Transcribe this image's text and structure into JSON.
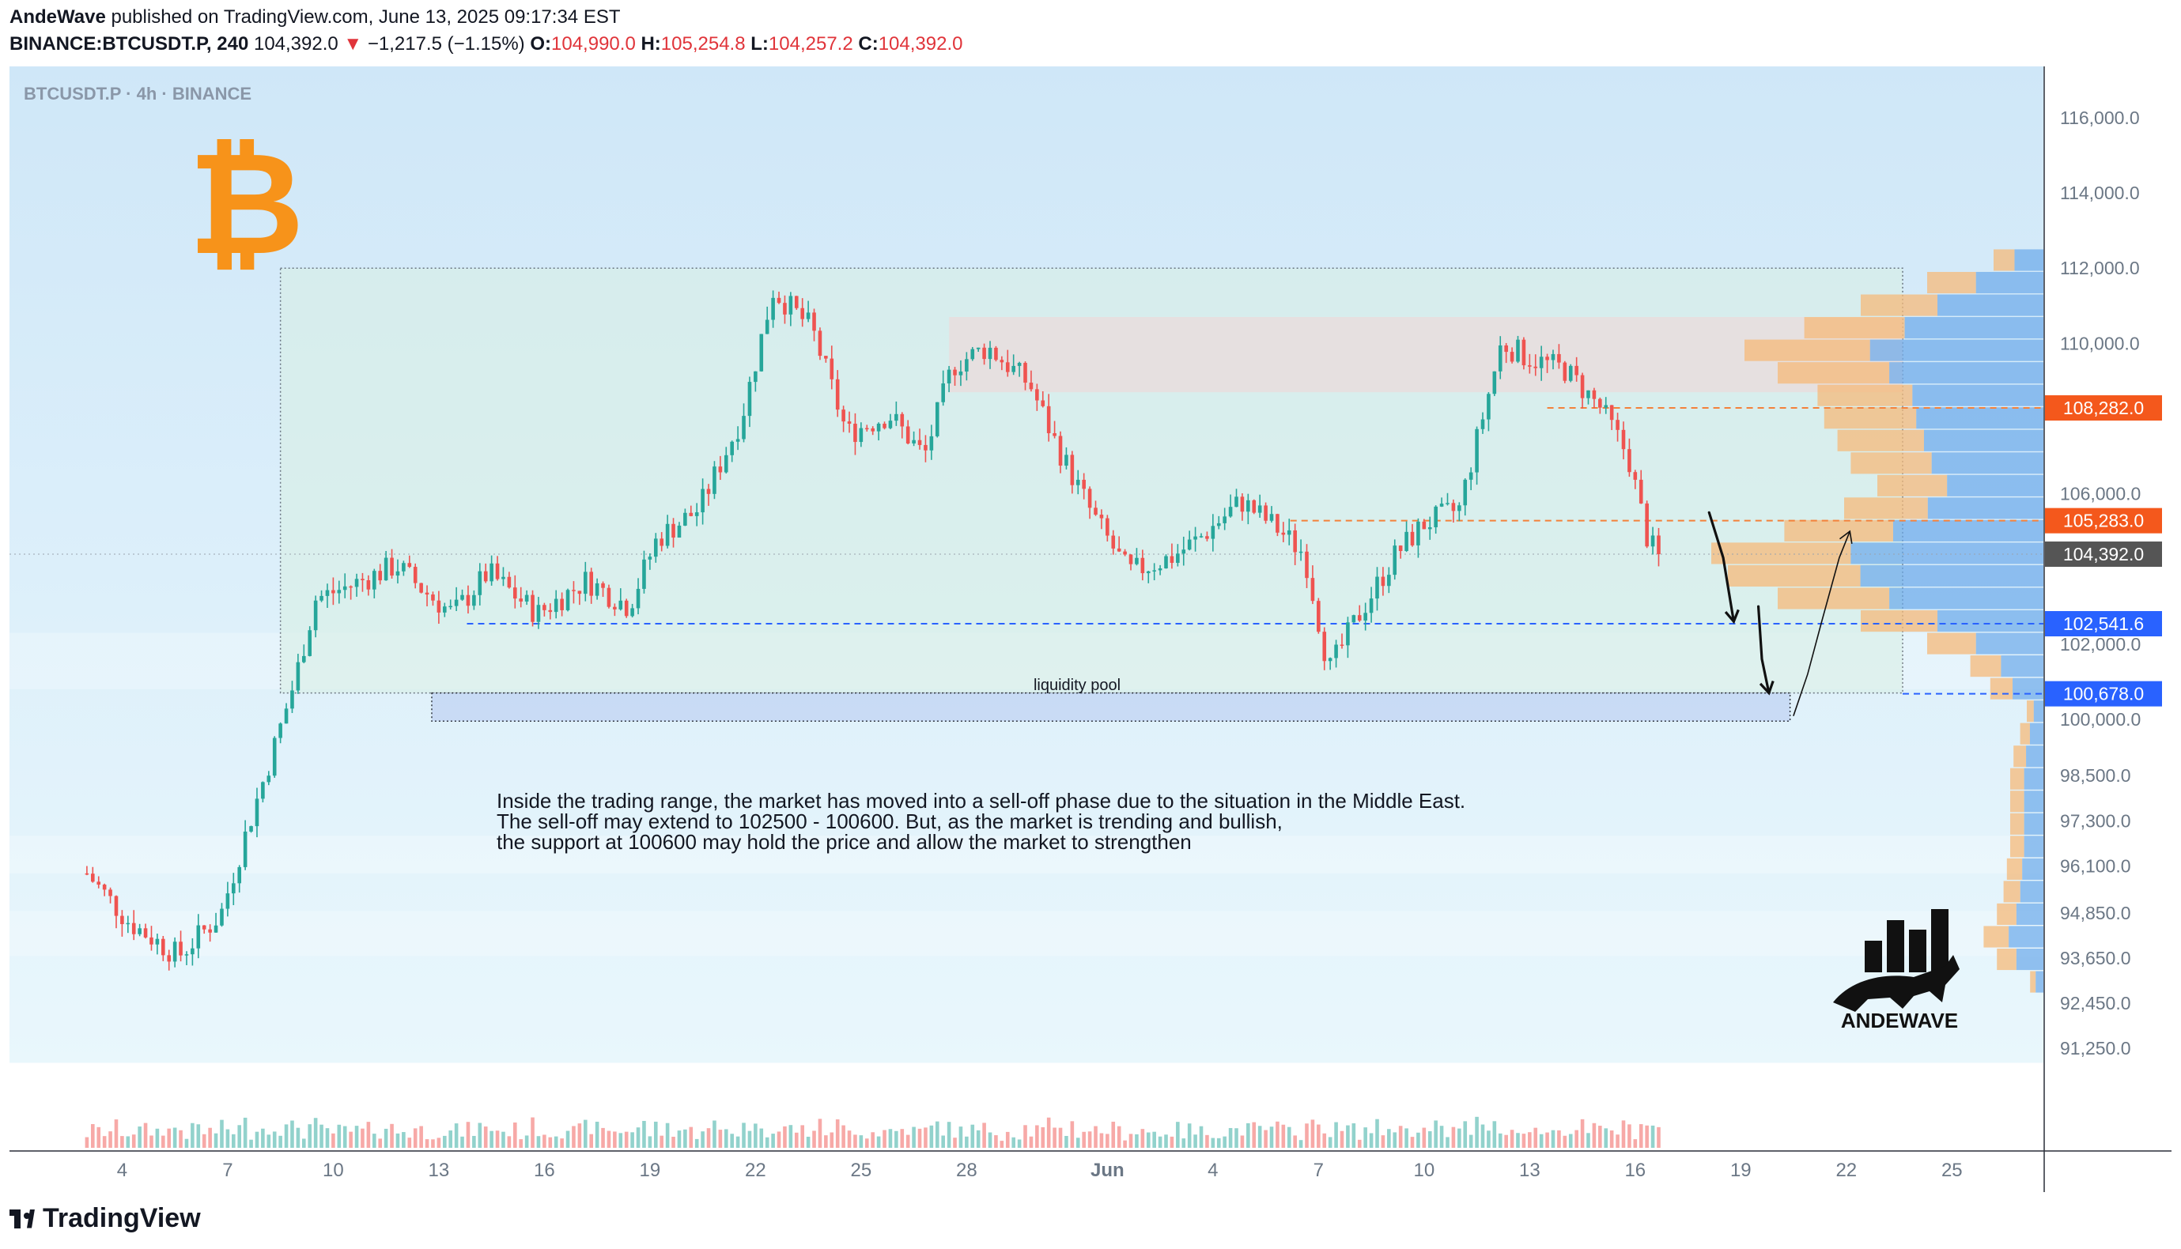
{
  "header": {
    "author": "AndeWave",
    "published_text": "published on TradingView.com, June 13, 2025 09:17:34 EST",
    "symbol_line": "BINANCE:BTCUSDT.P, 240",
    "last": "104,392.0",
    "change_arrow": "▼",
    "change": "−1,217.5 (−1.15%)",
    "o_label": "O:",
    "o_value": "104,990.0",
    "h_label": "H:",
    "h_value": "105,254.8",
    "l_label": "L:",
    "l_value": "104,257.2",
    "c_label": "C:",
    "c_value": "104,392.0"
  },
  "chart_tag": "BTCUSDT.P · 4h · BINANCE",
  "annotation": "Inside the trading range, the market has moved into a sell-off phase due to the situation in the Middle East.\nThe sell-off may extend to 102500 - 100600. But, as the market is trending and bullish,\nthe support at 100600 may hold the price and allow the market to strengthen",
  "liquidity_label": "liquidity pool",
  "logo_text": "ANDEWAVE",
  "footer": {
    "brand": "TradingView"
  },
  "colors": {
    "up": "#26a69a",
    "down": "#ef5350",
    "bitcoin": "#f7931a",
    "price_tag_last": "#555555",
    "price_tag_orange": "#f4581c",
    "price_tag_blue": "#2962ff",
    "chart_bg_top": "#cfe7f8",
    "chart_bg_bottom": "#e9f7fc"
  },
  "chart_data": {
    "type": "candlestick",
    "symbol": "BTCUSDT.P",
    "timeframe": "4h",
    "exchange": "BINANCE",
    "ylim": [
      90500,
      117000
    ],
    "y_ticks": [
      "116,000.0",
      "114,000.0",
      "112,000.0",
      "110,000.0",
      "106,000.0",
      "102,000.0",
      "100,000.0",
      "98,500.0",
      "97,300.0",
      "96,100.0",
      "94,850.0",
      "93,650.0",
      "92,450.0",
      "91,250.0"
    ],
    "y_tick_values": [
      116000,
      114000,
      112000,
      110000,
      106000,
      102000,
      100000,
      98500,
      97300,
      96100,
      94850,
      93650,
      92450,
      91250
    ],
    "x_ticks": [
      "4",
      "7",
      "10",
      "13",
      "16",
      "19",
      "22",
      "25",
      "28",
      "Jun",
      "4",
      "7",
      "10",
      "13",
      "16",
      "19",
      "22",
      "25"
    ],
    "x_tick_days": [
      4,
      7,
      10,
      13,
      16,
      19,
      22,
      25,
      28,
      32,
      35,
      38,
      41,
      44,
      47,
      50,
      53,
      56
    ],
    "price_labels": [
      {
        "value": 108282,
        "text": "108,282.0",
        "style": "orange"
      },
      {
        "value": 105283,
        "text": "105,283.0",
        "style": "orange"
      },
      {
        "value": 104392,
        "text": "104,392.0",
        "style": "last"
      },
      {
        "value": 102541.6,
        "text": "102,541.6",
        "style": "blue"
      },
      {
        "value": 100678,
        "text": "100,678.0",
        "style": "blue"
      }
    ],
    "hlines": [
      {
        "value": 108282,
        "color": "orange"
      },
      {
        "value": 105283,
        "color": "orange"
      },
      {
        "value": 102541.6,
        "color": "blue"
      },
      {
        "value": 100678,
        "color": "blue"
      }
    ],
    "zones": {
      "range_box": {
        "t0": 8.5,
        "t1": 54.6,
        "high": 112000,
        "low": 100700
      },
      "liquidity_pool": {
        "t0": 12.8,
        "t1": 51.4,
        "high": 100700,
        "low": 99950
      },
      "supply_zone": {
        "t0": 27.5,
        "t1": 54.6,
        "high": 110700,
        "low": 108700
      }
    },
    "volume_profile": [
      {
        "price": 112200,
        "v": 0.15
      },
      {
        "price": 111600,
        "v": 0.35
      },
      {
        "price": 111000,
        "v": 0.55
      },
      {
        "price": 110400,
        "v": 0.72
      },
      {
        "price": 109800,
        "v": 0.9
      },
      {
        "price": 109200,
        "v": 0.8
      },
      {
        "price": 108600,
        "v": 0.68
      },
      {
        "price": 108000,
        "v": 0.66
      },
      {
        "price": 107400,
        "v": 0.62
      },
      {
        "price": 106800,
        "v": 0.58
      },
      {
        "price": 106200,
        "v": 0.5
      },
      {
        "price": 105600,
        "v": 0.6
      },
      {
        "price": 105000,
        "v": 0.78
      },
      {
        "price": 104400,
        "v": 1.0
      },
      {
        "price": 103800,
        "v": 0.95
      },
      {
        "price": 103200,
        "v": 0.8
      },
      {
        "price": 102600,
        "v": 0.55
      },
      {
        "price": 102000,
        "v": 0.35
      },
      {
        "price": 101400,
        "v": 0.22
      },
      {
        "price": 100800,
        "v": 0.16
      },
      {
        "price": 100200,
        "v": 0.05
      },
      {
        "price": 99600,
        "v": 0.07
      },
      {
        "price": 99000,
        "v": 0.09
      },
      {
        "price": 98400,
        "v": 0.1
      },
      {
        "price": 97800,
        "v": 0.1
      },
      {
        "price": 97200,
        "v": 0.1
      },
      {
        "price": 96600,
        "v": 0.1
      },
      {
        "price": 96000,
        "v": 0.11
      },
      {
        "price": 95400,
        "v": 0.12
      },
      {
        "price": 94800,
        "v": 0.14
      },
      {
        "price": 94200,
        "v": 0.18
      },
      {
        "price": 93600,
        "v": 0.14
      },
      {
        "price": 93000,
        "v": 0.04
      }
    ],
    "price_path": [
      {
        "t": 3.0,
        "p": 95900
      },
      {
        "t": 4.2,
        "p": 94600
      },
      {
        "t": 5.6,
        "p": 93700
      },
      {
        "t": 6.8,
        "p": 94800
      },
      {
        "t": 7.6,
        "p": 97200
      },
      {
        "t": 8.2,
        "p": 98900
      },
      {
        "t": 8.9,
        "p": 101000
      },
      {
        "t": 9.5,
        "p": 103200
      },
      {
        "t": 10.6,
        "p": 103600
      },
      {
        "t": 11.8,
        "p": 104100
      },
      {
        "t": 12.6,
        "p": 103400
      },
      {
        "t": 13.4,
        "p": 102800
      },
      {
        "t": 14.4,
        "p": 103900
      },
      {
        "t": 15.8,
        "p": 102800
      },
      {
        "t": 17.2,
        "p": 103700
      },
      {
        "t": 18.4,
        "p": 103000
      },
      {
        "t": 19.2,
        "p": 104800
      },
      {
        "t": 20.4,
        "p": 105600
      },
      {
        "t": 21.6,
        "p": 108000
      },
      {
        "t": 22.5,
        "p": 111400
      },
      {
        "t": 23.6,
        "p": 110400
      },
      {
        "t": 24.6,
        "p": 107600
      },
      {
        "t": 25.8,
        "p": 108100
      },
      {
        "t": 26.8,
        "p": 107000
      },
      {
        "t": 27.6,
        "p": 109400
      },
      {
        "t": 28.6,
        "p": 109900
      },
      {
        "t": 29.8,
        "p": 108900
      },
      {
        "t": 30.6,
        "p": 107200
      },
      {
        "t": 31.6,
        "p": 105400
      },
      {
        "t": 32.6,
        "p": 103900
      },
      {
        "t": 33.8,
        "p": 104300
      },
      {
        "t": 34.6,
        "p": 104800
      },
      {
        "t": 35.8,
        "p": 105800
      },
      {
        "t": 36.8,
        "p": 105100
      },
      {
        "t": 37.6,
        "p": 104400
      },
      {
        "t": 38.3,
        "p": 101300
      },
      {
        "t": 39.1,
        "p": 102700
      },
      {
        "t": 40.2,
        "p": 104400
      },
      {
        "t": 41.0,
        "p": 105200
      },
      {
        "t": 42.0,
        "p": 105600
      },
      {
        "t": 42.6,
        "p": 107800
      },
      {
        "t": 43.2,
        "p": 110000
      },
      {
        "t": 44.0,
        "p": 109600
      },
      {
        "t": 45.0,
        "p": 109300
      },
      {
        "t": 46.0,
        "p": 108300
      },
      {
        "t": 46.8,
        "p": 107000
      },
      {
        "t": 47.4,
        "p": 104600
      },
      {
        "t": 47.8,
        "p": 104392
      }
    ],
    "last_candle_t": 47.8,
    "projection_arrows": [
      [
        {
          "t": 49.1,
          "p": 105500
        },
        {
          "t": 49.5,
          "p": 104300
        },
        {
          "t": 49.8,
          "p": 102600
        }
      ],
      [
        {
          "t": 50.5,
          "p": 103000
        },
        {
          "t": 50.6,
          "p": 101600
        },
        {
          "t": 50.8,
          "p": 100700
        }
      ],
      [
        {
          "t": 51.5,
          "p": 100100
        },
        {
          "t": 51.9,
          "p": 101200
        },
        {
          "t": 52.3,
          "p": 102600
        },
        {
          "t": 52.8,
          "p": 104300
        },
        {
          "t": 53.1,
          "p": 105000
        }
      ]
    ]
  }
}
